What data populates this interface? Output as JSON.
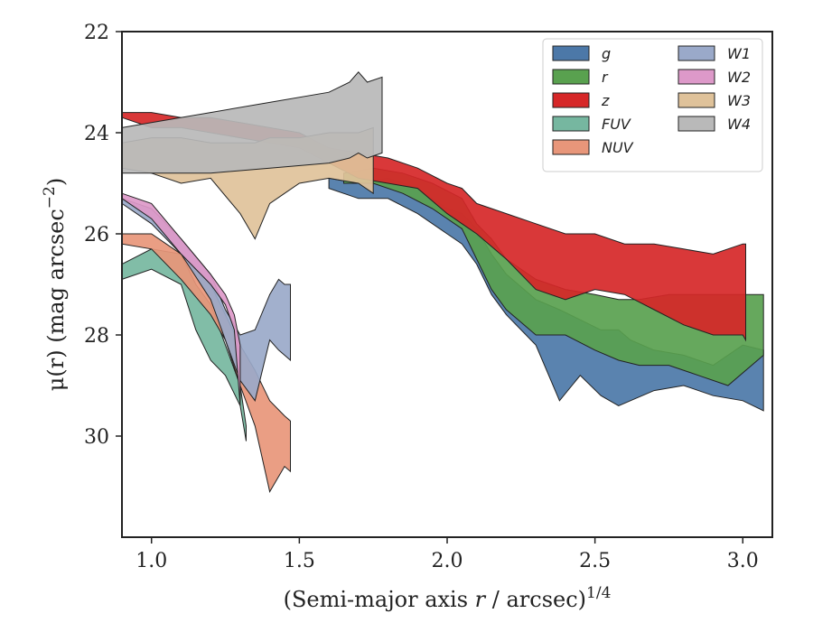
{
  "chart_data": {
    "type": "area",
    "title": "",
    "xlabel_main": "(Semi-major axis ",
    "xlabel_var": "r",
    "xlabel_rest": " / arcsec)",
    "xlabel_exp": "1/4",
    "ylabel_main": "μ(r) (mag arcsec",
    "ylabel_exp": "−2",
    "ylabel_close": ")",
    "xlim": [
      0.9,
      3.1
    ],
    "ylim": [
      22,
      32
    ],
    "y_inverted": true,
    "x_ticks": [
      1.0,
      1.5,
      2.0,
      2.5,
      3.0
    ],
    "x_tick_labels": [
      "1.0",
      "1.5",
      "2.0",
      "2.5",
      "3.0"
    ],
    "y_ticks": [
      22,
      24,
      26,
      28,
      30
    ],
    "y_tick_labels": [
      "22",
      "24",
      "26",
      "28",
      "30"
    ],
    "grid": false,
    "legend_position": "top-right",
    "legend_columns": 2,
    "series": [
      {
        "name": "g",
        "color": "#4c78a8",
        "x": [
          1.6,
          1.7,
          1.8,
          1.9,
          2.0,
          2.05,
          2.1,
          2.15,
          2.2,
          2.3,
          2.38,
          2.45,
          2.52,
          2.58,
          2.62,
          2.7,
          2.8,
          2.9,
          3.0,
          3.07
        ],
        "lo": [
          24.9,
          25.0,
          24.9,
          25.1,
          25.5,
          25.6,
          25.9,
          26.4,
          26.8,
          27.3,
          27.5,
          27.7,
          27.9,
          27.9,
          28.1,
          28.3,
          28.4,
          28.6,
          28.2,
          28.3
        ],
        "hi": [
          25.1,
          25.3,
          25.3,
          25.6,
          26.0,
          26.2,
          26.6,
          27.2,
          27.6,
          28.2,
          29.3,
          28.8,
          29.2,
          29.4,
          29.3,
          29.1,
          29.0,
          29.2,
          29.3,
          29.5
        ]
      },
      {
        "name": "r",
        "color": "#59a14f",
        "x": [
          1.65,
          1.75,
          1.85,
          1.95,
          2.05,
          2.1,
          2.15,
          2.2,
          2.3,
          2.4,
          2.5,
          2.58,
          2.65,
          2.75,
          2.85,
          2.95,
          3.07
        ],
        "lo": [
          24.8,
          24.7,
          24.8,
          25.0,
          25.3,
          25.8,
          26.1,
          26.5,
          26.9,
          27.1,
          27.2,
          27.3,
          27.3,
          27.2,
          27.2,
          27.2,
          27.2
        ],
        "hi": [
          25.0,
          25.0,
          25.2,
          25.5,
          25.9,
          26.5,
          27.1,
          27.5,
          28.0,
          28.0,
          28.3,
          28.5,
          28.6,
          28.6,
          28.8,
          29.0,
          28.4
        ]
      },
      {
        "name": "z",
        "color": "#d62728",
        "x": [
          0.9,
          1.0,
          1.1,
          1.2,
          1.3,
          1.4,
          1.5,
          1.6,
          1.7,
          1.8,
          1.9,
          2.0,
          2.05,
          2.1,
          2.2,
          2.3,
          2.4,
          2.5,
          2.6,
          2.7,
          2.8,
          2.9,
          3.0,
          3.01
        ],
        "lo": [
          23.6,
          23.6,
          23.7,
          23.7,
          23.8,
          23.9,
          24.0,
          24.3,
          24.4,
          24.5,
          24.7,
          25.0,
          25.1,
          25.4,
          25.6,
          25.8,
          26.0,
          26.0,
          26.2,
          26.2,
          26.3,
          26.4,
          26.2,
          26.2
        ],
        "hi": [
          23.7,
          23.9,
          23.9,
          24.0,
          24.1,
          24.2,
          24.3,
          24.6,
          24.9,
          25.0,
          25.1,
          25.6,
          25.8,
          26.0,
          26.5,
          27.1,
          27.3,
          27.1,
          27.2,
          27.5,
          27.8,
          28.0,
          28.0,
          28.1
        ]
      },
      {
        "name": "FUV",
        "color": "#76b7a0",
        "x": [
          0.9,
          1.0,
          1.1,
          1.15,
          1.2,
          1.25,
          1.3,
          1.32
        ],
        "lo": [
          26.6,
          26.3,
          26.4,
          27.0,
          27.4,
          28.2,
          29.0,
          29.8
        ],
        "hi": [
          26.9,
          26.7,
          27.0,
          27.9,
          28.5,
          28.8,
          29.4,
          30.1
        ]
      },
      {
        "name": "NUV",
        "color": "#e8967a",
        "x": [
          0.9,
          1.0,
          1.1,
          1.2,
          1.25,
          1.3,
          1.35,
          1.4,
          1.45,
          1.47
        ],
        "lo": [
          26.0,
          26.0,
          26.4,
          27.0,
          27.6,
          28.2,
          28.7,
          29.3,
          29.6,
          29.7
        ],
        "hi": [
          26.2,
          26.3,
          26.9,
          27.6,
          28.1,
          29.0,
          29.8,
          31.1,
          30.6,
          30.7
        ]
      },
      {
        "name": "W1",
        "color": "#9aa9c9",
        "x": [
          0.9,
          1.0,
          1.1,
          1.2,
          1.25,
          1.3,
          1.35,
          1.4,
          1.43,
          1.45,
          1.47
        ],
        "lo": [
          25.3,
          25.5,
          26.1,
          26.8,
          27.5,
          28.0,
          27.9,
          27.2,
          26.9,
          27.0,
          27.0
        ],
        "hi": [
          25.4,
          25.8,
          26.4,
          27.3,
          28.1,
          28.9,
          29.3,
          28.1,
          28.3,
          28.4,
          28.5
        ]
      },
      {
        "name": "W2",
        "color": "#dd99c9",
        "x": [
          0.9,
          1.0,
          1.1,
          1.2,
          1.25,
          1.28,
          1.3
        ],
        "lo": [
          25.2,
          25.4,
          26.1,
          26.8,
          27.2,
          27.6,
          28.2
        ],
        "hi": [
          25.3,
          25.7,
          26.4,
          27.0,
          27.4,
          27.9,
          29.4
        ]
      },
      {
        "name": "W3",
        "color": "#dfc29a",
        "x": [
          0.9,
          1.0,
          1.1,
          1.2,
          1.3,
          1.35,
          1.4,
          1.45,
          1.5,
          1.6,
          1.7,
          1.75
        ],
        "lo": [
          24.2,
          24.1,
          24.1,
          24.2,
          24.2,
          24.2,
          24.1,
          24.1,
          24.1,
          24.0,
          24.0,
          23.9
        ],
        "hi": [
          24.7,
          24.8,
          25.0,
          24.9,
          25.6,
          26.1,
          25.4,
          25.2,
          25.0,
          24.9,
          25.0,
          25.2
        ]
      },
      {
        "name": "W4",
        "color": "#b9b9b9",
        "x": [
          0.9,
          1.0,
          1.2,
          1.4,
          1.6,
          1.67,
          1.7,
          1.73,
          1.78
        ],
        "lo": [
          23.9,
          23.8,
          23.6,
          23.4,
          23.2,
          23.0,
          22.8,
          23.0,
          22.9
        ],
        "hi": [
          24.8,
          24.8,
          24.8,
          24.7,
          24.6,
          24.5,
          24.4,
          24.5,
          24.4
        ]
      }
    ]
  }
}
